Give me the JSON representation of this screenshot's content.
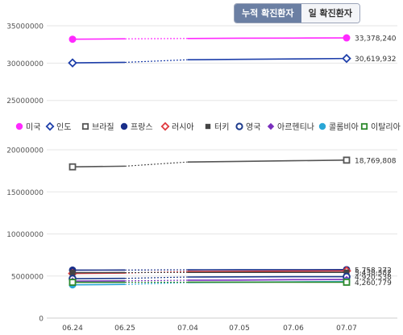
{
  "toggle": {
    "cumulative_label": "누적 확진환자",
    "daily_label": "일 확진환자"
  },
  "colors": {
    "미국": "#ff29ff",
    "인도": "#1e3faa",
    "브라질": "#555555",
    "프랑스": "#1a2f8a",
    "러시아": "#e0393e",
    "터키": "#444444",
    "영국": "#1c3a8c",
    "아르헨티나": "#7a2fbd",
    "콜롬비아": "#2aa6d6",
    "이탈리아": "#2d8a2d"
  },
  "legend": [
    {
      "name": "미국",
      "marker": "filled-circle"
    },
    {
      "name": "인도",
      "marker": "open-diamond"
    },
    {
      "name": "브라질",
      "marker": "open-square"
    },
    {
      "name": "프랑스",
      "marker": "filled-circle"
    },
    {
      "name": "러시아",
      "marker": "open-diamond"
    },
    {
      "name": "터키",
      "marker": "filled-square"
    },
    {
      "name": "영국",
      "marker": "open-circle"
    },
    {
      "name": "아르헨티나",
      "marker": "filled-diamond"
    },
    {
      "name": "콜롬비아",
      "marker": "filled-circle"
    },
    {
      "name": "이탈리아",
      "marker": "open-square"
    }
  ],
  "chart_data": [
    {
      "type": "line",
      "categories": [
        "06.24",
        "06.25",
        "07.04",
        "07.05",
        "07.06",
        "07.07"
      ],
      "yticks": [
        "35000000",
        "30000000",
        "25000000"
      ],
      "ylim": [
        24000000,
        35000000
      ],
      "series": [
        {
          "name": "미국",
          "values": [
            33200000,
            33250000,
            33300000,
            33330000,
            33350000,
            33378240
          ],
          "end_label": "33,378,240"
        },
        {
          "name": "인도",
          "values": [
            30030000,
            30100000,
            30450000,
            30500000,
            30560000,
            30619932
          ],
          "end_label": "30,619,932"
        }
      ]
    },
    {
      "type": "line",
      "categories": [
        "06.24",
        "06.25",
        "07.04",
        "07.05",
        "07.06",
        "07.07"
      ],
      "xlabels": [
        "06.24",
        "06.25",
        "07.04",
        "07.05",
        "07.06",
        "07.07"
      ],
      "yticks": [
        "20000000",
        "15000000",
        "10000000",
        "5000000",
        "0"
      ],
      "ylim": [
        0,
        20000000
      ],
      "series": [
        {
          "name": "브라질",
          "values": [
            17970000,
            18050000,
            18550000,
            18620000,
            18700000,
            18769808
          ],
          "end_label": "18,769,808"
        },
        {
          "name": "프랑스",
          "values": [
            5700000,
            5710000,
            5740000,
            5745000,
            5750000,
            5758272
          ],
          "end_label": "5,758,272"
        },
        {
          "name": "러시아",
          "values": [
            5300000,
            5350000,
            5540000,
            5560000,
            5590000,
            5610000
          ]
        },
        {
          "name": "터키",
          "values": [
            5400000,
            5410000,
            5430000,
            5432000,
            5435000,
            5438382
          ],
          "end_label": "5,438,382"
        },
        {
          "name": "영국",
          "values": [
            4680000,
            4720000,
            4880000,
            4900000,
            4920000,
            4920538
          ],
          "end_label": "4,920,538"
        },
        {
          "name": "아르헨티나",
          "values": [
            4400000,
            4420000,
            4500000,
            4520000,
            4560000,
            4583000
          ]
        },
        {
          "name": "콜롬비아",
          "values": [
            3950000,
            4000000,
            4230000,
            4260000,
            4300000,
            4333000
          ]
        },
        {
          "name": "이탈리아",
          "values": [
            4250000,
            4252000,
            4260000,
            4260000,
            4260500,
            4260779
          ],
          "end_label": "4,260,779"
        }
      ]
    }
  ]
}
